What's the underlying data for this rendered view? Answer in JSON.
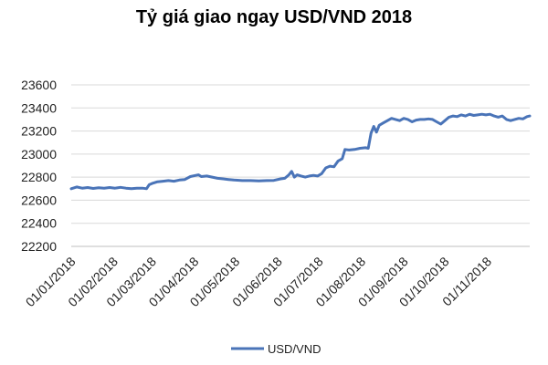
{
  "chart_data": {
    "type": "line",
    "title": "Tỷ giá giao ngay USD/VND 2018",
    "xlabel": "",
    "ylabel": "",
    "ylim": [
      22200,
      23600
    ],
    "yticks": [
      22200,
      22400,
      22600,
      22800,
      23000,
      23200,
      23400,
      23600
    ],
    "xticks": [
      "01/01/2018",
      "01/02/2018",
      "01/03/2018",
      "01/04/2018",
      "01/05/2018",
      "01/06/2018",
      "01/07/2018",
      "01/08/2018",
      "01/09/2018",
      "01/10/2018",
      "01/11/2018"
    ],
    "grid": true,
    "legend_position": "bottom",
    "colors": {
      "series": "#4a74b8",
      "grid": "#d9d9d9",
      "axis": "#bfbfbf"
    },
    "series": [
      {
        "name": "USD/VND",
        "points": [
          [
            "01/01/2018",
            22700
          ],
          [
            "05/01/2018",
            22715
          ],
          [
            "09/01/2018",
            22705
          ],
          [
            "13/01/2018",
            22710
          ],
          [
            "17/01/2018",
            22702
          ],
          [
            "21/01/2018",
            22708
          ],
          [
            "25/01/2018",
            22705
          ],
          [
            "29/01/2018",
            22710
          ],
          [
            "02/02/2018",
            22705
          ],
          [
            "06/02/2018",
            22712
          ],
          [
            "10/02/2018",
            22705
          ],
          [
            "14/02/2018",
            22700
          ],
          [
            "18/02/2018",
            22705
          ],
          [
            "22/02/2018",
            22705
          ],
          [
            "25/02/2018",
            22700
          ],
          [
            "27/02/2018",
            22735
          ],
          [
            "01/03/2018",
            22745
          ],
          [
            "05/03/2018",
            22760
          ],
          [
            "09/03/2018",
            22765
          ],
          [
            "13/03/2018",
            22770
          ],
          [
            "17/03/2018",
            22765
          ],
          [
            "21/03/2018",
            22775
          ],
          [
            "25/03/2018",
            22780
          ],
          [
            "29/03/2018",
            22805
          ],
          [
            "02/04/2018",
            22815
          ],
          [
            "04/04/2018",
            22820
          ],
          [
            "06/04/2018",
            22805
          ],
          [
            "10/04/2018",
            22810
          ],
          [
            "14/04/2018",
            22800
          ],
          [
            "18/04/2018",
            22790
          ],
          [
            "22/04/2018",
            22785
          ],
          [
            "26/04/2018",
            22780
          ],
          [
            "30/04/2018",
            22775
          ],
          [
            "06/05/2018",
            22770
          ],
          [
            "12/05/2018",
            22770
          ],
          [
            "18/05/2018",
            22768
          ],
          [
            "24/05/2018",
            22770
          ],
          [
            "29/05/2018",
            22772
          ],
          [
            "03/06/2018",
            22785
          ],
          [
            "06/06/2018",
            22790
          ],
          [
            "09/06/2018",
            22820
          ],
          [
            "11/06/2018",
            22850
          ],
          [
            "13/06/2018",
            22800
          ],
          [
            "15/06/2018",
            22820
          ],
          [
            "18/06/2018",
            22810
          ],
          [
            "21/06/2018",
            22800
          ],
          [
            "24/06/2018",
            22810
          ],
          [
            "27/06/2018",
            22815
          ],
          [
            "30/06/2018",
            22810
          ],
          [
            "03/07/2018",
            22830
          ],
          [
            "06/07/2018",
            22880
          ],
          [
            "09/07/2018",
            22895
          ],
          [
            "12/07/2018",
            22890
          ],
          [
            "15/07/2018",
            22940
          ],
          [
            "18/07/2018",
            22960
          ],
          [
            "20/07/2018",
            23040
          ],
          [
            "23/07/2018",
            23035
          ],
          [
            "27/07/2018",
            23040
          ],
          [
            "31/07/2018",
            23050
          ],
          [
            "04/08/2018",
            23055
          ],
          [
            "06/08/2018",
            23050
          ],
          [
            "08/08/2018",
            23180
          ],
          [
            "10/08/2018",
            23240
          ],
          [
            "12/08/2018",
            23190
          ],
          [
            "14/08/2018",
            23250
          ],
          [
            "17/08/2018",
            23270
          ],
          [
            "20/08/2018",
            23290
          ],
          [
            "23/08/2018",
            23310
          ],
          [
            "26/08/2018",
            23300
          ],
          [
            "29/08/2018",
            23290
          ],
          [
            "01/09/2018",
            23310
          ],
          [
            "04/09/2018",
            23300
          ],
          [
            "07/09/2018",
            23280
          ],
          [
            "10/09/2018",
            23295
          ],
          [
            "13/09/2018",
            23300
          ],
          [
            "16/09/2018",
            23300
          ],
          [
            "19/09/2018",
            23305
          ],
          [
            "22/09/2018",
            23300
          ],
          [
            "25/09/2018",
            23280
          ],
          [
            "28/09/2018",
            23260
          ],
          [
            "01/10/2018",
            23290
          ],
          [
            "04/10/2018",
            23320
          ],
          [
            "07/10/2018",
            23330
          ],
          [
            "10/10/2018",
            23325
          ],
          [
            "13/10/2018",
            23340
          ],
          [
            "16/10/2018",
            23330
          ],
          [
            "19/10/2018",
            23345
          ],
          [
            "22/10/2018",
            23335
          ],
          [
            "25/10/2018",
            23340
          ],
          [
            "28/10/2018",
            23345
          ],
          [
            "31/10/2018",
            23340
          ],
          [
            "03/11/2018",
            23345
          ],
          [
            "06/11/2018",
            23330
          ],
          [
            "09/11/2018",
            23320
          ],
          [
            "12/11/2018",
            23330
          ],
          [
            "15/11/2018",
            23300
          ],
          [
            "18/11/2018",
            23290
          ],
          [
            "21/11/2018",
            23300
          ],
          [
            "24/11/2018",
            23310
          ],
          [
            "27/11/2018",
            23305
          ],
          [
            "30/11/2018",
            23325
          ],
          [
            "02/12/2018",
            23330
          ]
        ]
      }
    ]
  }
}
